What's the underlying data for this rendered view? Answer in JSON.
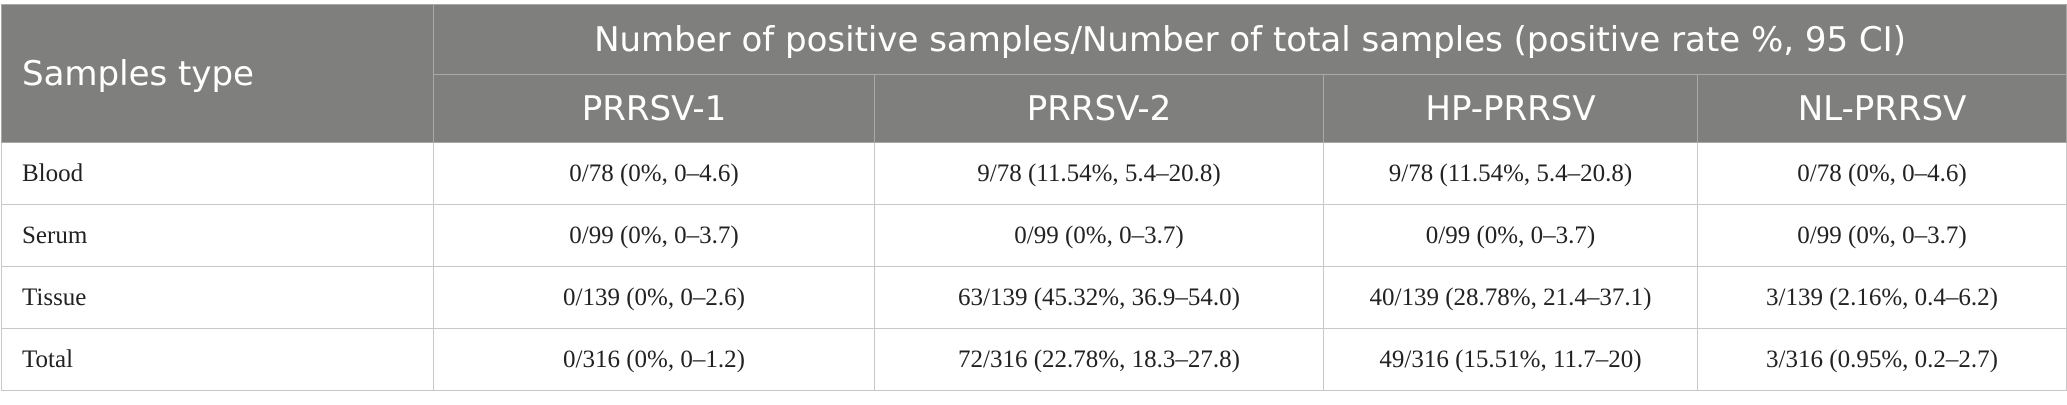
{
  "table": {
    "row_header_label": "Samples type",
    "group_header": "Number of positive samples/Number of total samples (positive rate %, 95 CI)",
    "columns": [
      "PRRSV-1",
      "PRRSV-2",
      "HP-PRRSV",
      "NL-PRRSV"
    ],
    "rows": [
      {
        "type": "Blood",
        "values": [
          "0/78 (0%, 0–4.6)",
          "9/78 (11.54%, 5.4–20.8)",
          "9/78 (11.54%, 5.4–20.8)",
          "0/78 (0%, 0–4.6)"
        ]
      },
      {
        "type": "Serum",
        "values": [
          "0/99 (0%, 0–3.7)",
          "0/99 (0%, 0–3.7)",
          "0/99 (0%, 0–3.7)",
          "0/99 (0%, 0–3.7)"
        ]
      },
      {
        "type": "Tissue",
        "values": [
          "0/139 (0%, 0–2.6)",
          "63/139 (45.32%, 36.9–54.0)",
          "40/139 (28.78%, 21.4–37.1)",
          "3/139 (2.16%, 0.4–6.2)"
        ]
      },
      {
        "type": "Total",
        "values": [
          "0/316 (0%, 0–1.2)",
          "72/316 (22.78%, 18.3–27.8)",
          "49/316 (15.51%, 11.7–20)",
          "3/316 (0.95%, 0.2–2.7)"
        ]
      }
    ]
  },
  "colors": {
    "header_background": "#7f807e",
    "header_text": "#ffffff",
    "grid_line": "#c8c8c8"
  }
}
